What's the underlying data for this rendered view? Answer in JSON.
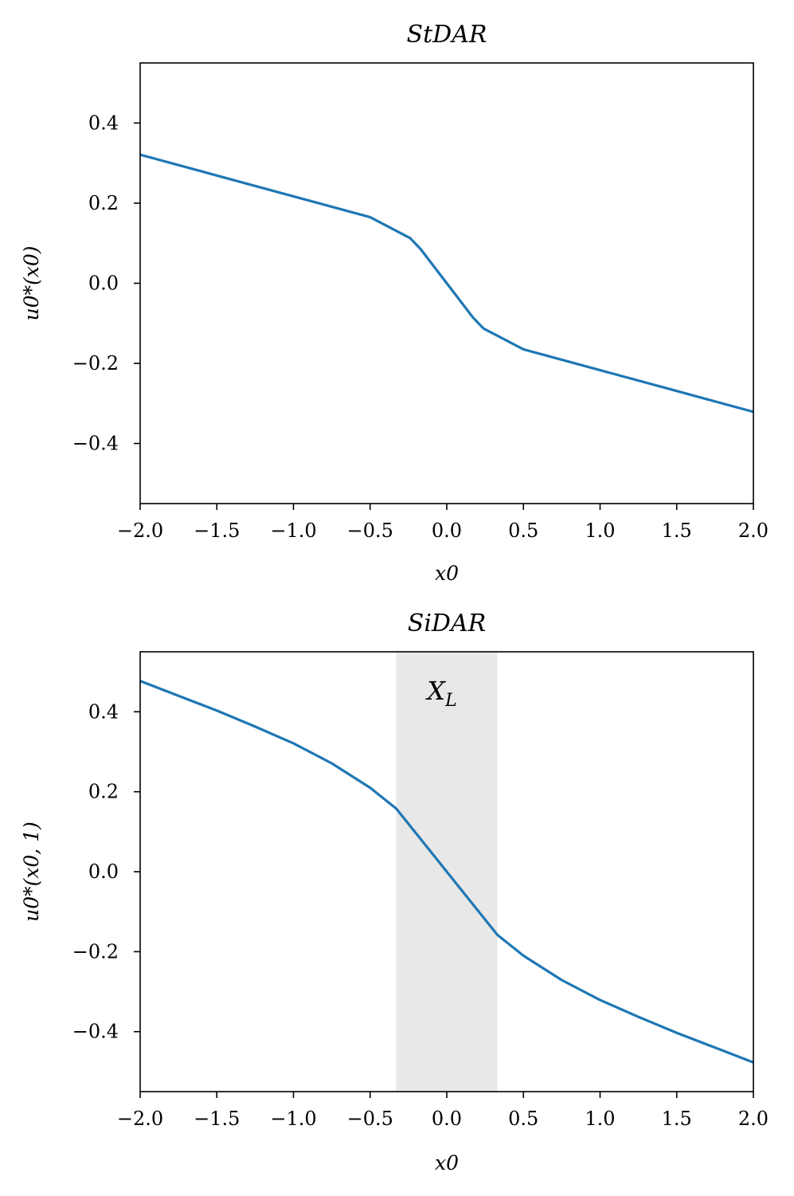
{
  "chart_data": [
    {
      "type": "line",
      "title": "StDAR",
      "xlabel": "x0",
      "ylabel": "u0*(x0)",
      "xlim": [
        -2.0,
        2.0
      ],
      "ylim": [
        -0.55,
        0.55
      ],
      "xticks": [
        -2.0,
        -1.5,
        -1.0,
        -0.5,
        0.0,
        0.5,
        1.0,
        1.5,
        2.0
      ],
      "xtick_labels": [
        "−2.0",
        "−1.5",
        "−1.0",
        "−0.5",
        "0.0",
        "0.5",
        "1.0",
        "1.5",
        "2.0"
      ],
      "yticks": [
        0.4,
        0.2,
        0.0,
        -0.2,
        -0.4
      ],
      "ytick_labels": [
        "0.4",
        "0.2",
        "0.0",
        "−0.2",
        "−0.4"
      ],
      "series": [
        {
          "name": "u0*",
          "color": "#1f77b4",
          "x": [
            -2.0,
            -1.5,
            -1.0,
            -0.5,
            -0.24,
            -0.17,
            -0.1,
            0.0,
            0.1,
            0.17,
            0.24,
            0.5,
            1.0,
            1.5,
            2.0
          ],
          "y": [
            0.321,
            0.269,
            0.217,
            0.165,
            0.113,
            0.085,
            0.05,
            0.0,
            -0.05,
            -0.085,
            -0.113,
            -0.165,
            -0.217,
            -0.269,
            -0.321
          ]
        }
      ]
    },
    {
      "type": "line",
      "title": "SiDAR",
      "xlabel": "x0",
      "ylabel": "u0*(x0, 1)",
      "xlim": [
        -2.0,
        2.0
      ],
      "ylim": [
        -0.55,
        0.55
      ],
      "xticks": [
        -2.0,
        -1.5,
        -1.0,
        -0.5,
        0.0,
        0.5,
        1.0,
        1.5,
        2.0
      ],
      "xtick_labels": [
        "−2.0",
        "−1.5",
        "−1.0",
        "−0.5",
        "0.0",
        "0.5",
        "1.0",
        "1.5",
        "2.0"
      ],
      "yticks": [
        0.4,
        0.2,
        0.0,
        -0.2,
        -0.4
      ],
      "ytick_labels": [
        "0.4",
        "0.2",
        "0.0",
        "−0.2",
        "−0.4"
      ],
      "shaded_region": {
        "x": [
          -0.33,
          0.33
        ],
        "label": "XL",
        "color": "#e8e8e8"
      },
      "series": [
        {
          "name": "u0*",
          "color": "#1f77b4",
          "x": [
            -2.0,
            -1.75,
            -1.5,
            -1.25,
            -1.0,
            -0.75,
            -0.5,
            -0.33,
            0.0,
            0.33,
            0.5,
            0.75,
            1.0,
            1.25,
            1.5,
            1.75,
            2.0
          ],
          "y": [
            0.477,
            0.44,
            0.403,
            0.363,
            0.321,
            0.271,
            0.21,
            0.158,
            0.0,
            -0.158,
            -0.21,
            -0.271,
            -0.321,
            -0.363,
            -0.403,
            -0.44,
            -0.477
          ]
        }
      ]
    }
  ]
}
